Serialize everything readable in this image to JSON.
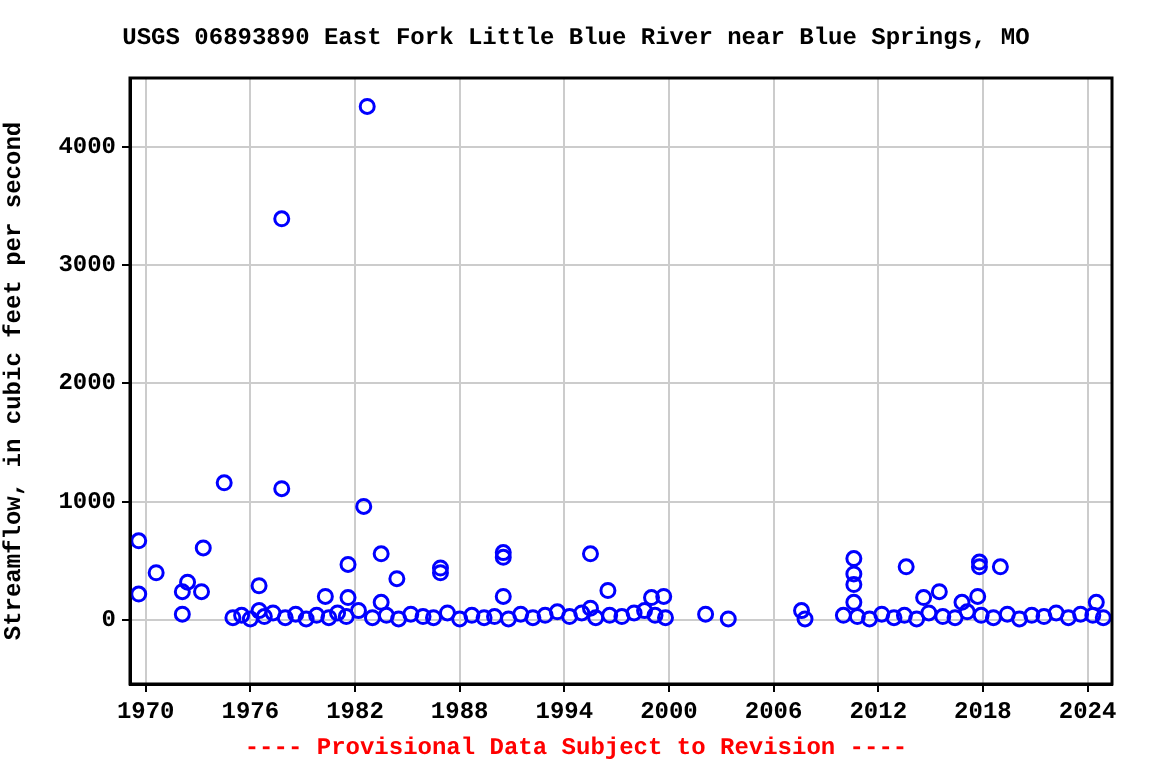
{
  "chart_data": {
    "type": "scatter",
    "title": "USGS 06893890 East Fork Little Blue River near Blue Springs, MO",
    "ylabel": "Streamflow, in cubic feet per second",
    "annotations": [
      "---- Provisional Data Subject to Revision ----"
    ],
    "xlim": [
      1969.1,
      2025.4
    ],
    "xticks": [
      1970,
      1976,
      1982,
      1988,
      1994,
      2000,
      2006,
      2012,
      2018,
      2024
    ],
    "ylim": [
      -540,
      4580
    ],
    "yticks": [
      0,
      1000,
      2000,
      3000,
      4000
    ],
    "grid": true,
    "legend": false,
    "marker": "circle",
    "series": [
      {
        "color": "#0000ff",
        "x": [
          1969.6,
          1969.6,
          1970.6,
          1972.1,
          1972.1,
          1972.4,
          1973.2,
          1973.3,
          1974.5,
          1976.5,
          1976.5,
          1977.8,
          1977.8,
          1980.3,
          1981.6,
          1981.6,
          1982.5,
          1982.7,
          1983.5,
          1983.5,
          1984.4,
          1986.9,
          1986.9,
          1990.5,
          1990.5,
          1990.5,
          1995.5,
          1996.5,
          1995.5,
          1999.0,
          1999.7,
          2002.1,
          2003.4,
          2007.6,
          2007.8,
          2010.6,
          2010.6,
          2010.6,
          2010.6,
          2013.6,
          2014.6,
          2015.5,
          2016.8,
          2017.7,
          2017.8,
          2017.8,
          2019.0,
          2024.5,
          1975.0,
          1975.5,
          1976.0,
          1976.8,
          1977.3,
          1978.0,
          1978.6,
          1979.2,
          1979.8,
          1980.5,
          1981.0,
          1981.5,
          1982.2,
          1983.0,
          1983.8,
          1984.5,
          1985.2,
          1985.9,
          1986.5,
          1987.3,
          1988.0,
          1988.7,
          1989.4,
          1990.0,
          1990.8,
          1991.5,
          1992.2,
          1992.9,
          1993.6,
          1994.3,
          1995.0,
          1995.8,
          1996.6,
          1997.3,
          1998.0,
          1998.6,
          1999.2,
          1999.8,
          2010.0,
          2010.8,
          2011.5,
          2012.2,
          2012.9,
          2013.5,
          2014.2,
          2014.9,
          2015.7,
          2016.4,
          2017.1,
          2017.9,
          2018.6,
          2019.4,
          2020.1,
          2020.8,
          2021.5,
          2022.2,
          2022.9,
          2023.6,
          2024.3,
          2024.9
        ],
        "values": [
          670,
          220,
          400,
          240,
          50,
          320,
          240,
          610,
          1160,
          290,
          80,
          3390,
          1110,
          200,
          470,
          190,
          960,
          4340,
          560,
          150,
          350,
          440,
          400,
          570,
          530,
          200,
          560,
          250,
          100,
          190,
          200,
          50,
          10,
          80,
          10,
          520,
          390,
          300,
          150,
          450,
          190,
          240,
          150,
          200,
          490,
          450,
          450,
          150,
          20,
          40,
          10,
          30,
          60,
          20,
          50,
          10,
          40,
          20,
          60,
          30,
          80,
          20,
          40,
          10,
          50,
          30,
          20,
          60,
          10,
          40,
          20,
          30,
          10,
          50,
          20,
          40,
          70,
          30,
          60,
          20,
          40,
          30,
          60,
          80,
          40,
          20,
          40,
          30,
          10,
          50,
          20,
          40,
          10,
          60,
          30,
          20,
          70,
          40,
          20,
          50,
          10,
          40,
          30,
          60,
          20,
          50,
          40,
          20
        ]
      }
    ]
  }
}
